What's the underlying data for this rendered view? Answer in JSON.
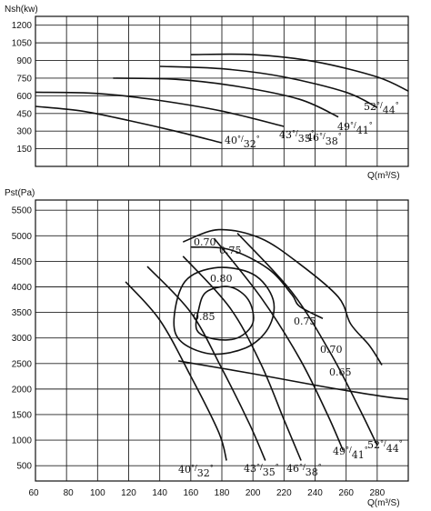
{
  "colors": {
    "ink": "#111111",
    "background": "#ffffff"
  },
  "chart_data": [
    {
      "id": "power",
      "type": "line",
      "title": "",
      "ylabel": "Nsh(kw)",
      "xlabel": "Q(m³/S)",
      "xlim": [
        60,
        300
      ],
      "ylim": [
        0,
        1275
      ],
      "y_ticks": [
        150,
        300,
        450,
        600,
        750,
        900,
        1050,
        1200
      ],
      "grid": true,
      "series": [
        {
          "name": "40°/32°",
          "label_parts": [
            "40",
            "°/",
            "32",
            "°"
          ],
          "points": [
            [
              60,
              510
            ],
            [
              90,
              470
            ],
            [
              120,
              390
            ],
            [
              150,
              300
            ],
            [
              180,
              200
            ]
          ]
        },
        {
          "name": "43°/35°",
          "label_parts": [
            "43",
            "°/",
            "35",
            "°"
          ],
          "points": [
            [
              60,
              630
            ],
            [
              100,
              620
            ],
            [
              140,
              560
            ],
            [
              180,
              470
            ],
            [
              220,
              340
            ]
          ]
        },
        {
          "name": "46°/38°",
          "label_parts": [
            "46",
            "°/",
            "38",
            "°"
          ],
          "points": [
            [
              110,
              750
            ],
            [
              150,
              740
            ],
            [
              190,
              680
            ],
            [
              230,
              570
            ],
            [
              255,
              420
            ]
          ]
        },
        {
          "name": "49°/41°",
          "label_parts": [
            "49",
            "°/",
            "41",
            "°"
          ],
          "points": [
            [
              140,
              850
            ],
            [
              180,
              830
            ],
            [
              220,
              760
            ],
            [
              260,
              630
            ],
            [
              280,
              500
            ]
          ]
        },
        {
          "name": "52°/44°",
          "label_parts": [
            "52",
            "°/",
            "44",
            "°"
          ],
          "points": [
            [
              160,
              950
            ],
            [
              200,
              950
            ],
            [
              240,
              890
            ],
            [
              280,
              760
            ],
            [
              300,
              640
            ]
          ]
        }
      ]
    },
    {
      "id": "pressure",
      "type": "line",
      "title": "",
      "ylabel": "Pst(Pa)",
      "xlabel": "Q(m³/S)",
      "xlim": [
        60,
        300
      ],
      "ylim": [
        200,
        5700
      ],
      "x_ticks": [
        60,
        80,
        100,
        120,
        140,
        160,
        180,
        200,
        220,
        240,
        260,
        280
      ],
      "y_ticks": [
        500,
        1000,
        1500,
        2000,
        2500,
        3000,
        3500,
        4000,
        4500,
        5000,
        5500
      ],
      "grid": true,
      "series": [
        {
          "name": "40°/32°",
          "label_parts": [
            "40",
            "°/",
            "32",
            "°"
          ],
          "points": [
            [
              118,
              4100
            ],
            [
              140,
              3350
            ],
            [
              160,
              2250
            ],
            [
              178,
              1150
            ],
            [
              183,
              600
            ]
          ]
        },
        {
          "name": "43°/35°",
          "label_parts": [
            "43",
            "°/",
            "35",
            "°"
          ],
          "points": [
            [
              132,
              4400
            ],
            [
              160,
              3500
            ],
            [
              180,
              2400
            ],
            [
              198,
              1300
            ],
            [
              208,
              600
            ]
          ]
        },
        {
          "name": "46°/38°",
          "label_parts": [
            "46",
            "°/",
            "38",
            "°"
          ],
          "points": [
            [
              155,
              4600
            ],
            [
              185,
              3600
            ],
            [
              205,
              2500
            ],
            [
              220,
              1400
            ],
            [
              231,
              600
            ]
          ]
        },
        {
          "name": "49°/41°",
          "label_parts": [
            "49",
            "°/",
            "41",
            "°"
          ],
          "points": [
            [
              175,
              4950
            ],
            [
              205,
              3800
            ],
            [
              230,
              2600
            ],
            [
              248,
              1500
            ],
            [
              258,
              800
            ]
          ]
        },
        {
          "name": "52°/44°",
          "label_parts": [
            "52",
            "°/",
            "44",
            "°"
          ],
          "points": [
            [
              190,
              5050
            ],
            [
              225,
              3900
            ],
            [
              250,
              2700
            ],
            [
              268,
              1650
            ],
            [
              280,
              900
            ]
          ]
        }
      ],
      "efficiency_contours": [
        {
          "label": "0.85",
          "points": [
            [
              165,
              3550
            ],
            [
              170,
              3900
            ],
            [
              185,
              4000
            ],
            [
              197,
              3750
            ],
            [
              200,
              3300
            ],
            [
              190,
              3000
            ],
            [
              175,
              2980
            ],
            [
              164,
              3150
            ]
          ]
        },
        {
          "label": "0.80",
          "points": [
            [
              150,
              3100
            ],
            [
              155,
              4050
            ],
            [
              175,
              4370
            ],
            [
              200,
              4250
            ],
            [
              213,
              3750
            ],
            [
              210,
              3200
            ],
            [
              195,
              2800
            ],
            [
              170,
              2700
            ]
          ]
        },
        {
          "label": "0.75",
          "points": [
            [
              160,
              4780
            ],
            [
              185,
              4730
            ],
            [
              210,
              4350
            ],
            [
              225,
              3850
            ],
            [
              230,
              3620
            ],
            [
              245,
              3380
            ]
          ]
        },
        {
          "label": "0.70",
          "points": [
            [
              155,
              4880
            ],
            [
              178,
              5120
            ],
            [
              205,
              4950
            ],
            [
              230,
              4450
            ],
            [
              255,
              3800
            ],
            [
              263,
              3270
            ],
            [
              275,
              2850
            ],
            [
              283,
              2470
            ]
          ]
        },
        {
          "label": "0.65",
          "points": [
            [
              152,
              2550
            ],
            [
              200,
              2300
            ],
            [
              245,
              2050
            ],
            [
              285,
              1850
            ],
            [
              300,
              1800
            ]
          ]
        }
      ],
      "efficiency_labels": [
        {
          "text": "0.70"
        },
        {
          "text": "0.75"
        },
        {
          "text": "0.80"
        },
        {
          "text": "0.85"
        },
        {
          "text": "0.75"
        },
        {
          "text": "0.70"
        },
        {
          "text": "0.65"
        }
      ]
    }
  ]
}
